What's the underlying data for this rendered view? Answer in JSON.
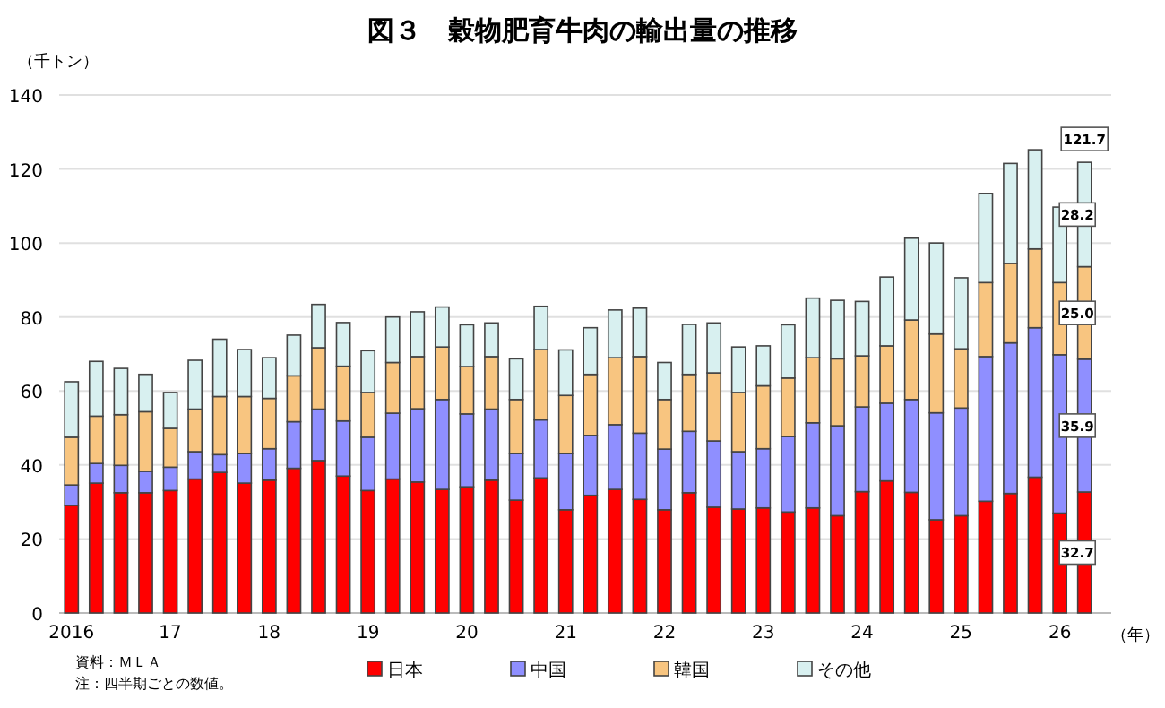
{
  "chart_data": {
    "type": "bar",
    "stacked": true,
    "title": "図３　穀物肥育牛肉の輸出量の推移",
    "ylabel": "（千トン）",
    "xlabel": "（年）",
    "categories": [
      "2016",
      null,
      null,
      null,
      "17",
      null,
      null,
      null,
      "18",
      null,
      null,
      null,
      "19",
      null,
      null,
      null,
      "20",
      null,
      null,
      null,
      "21",
      null,
      null,
      null,
      "22",
      null,
      null,
      null,
      "23",
      null,
      null,
      null,
      "24",
      null,
      null,
      null,
      "25",
      null,
      null,
      null,
      "26",
      null
    ],
    "series": [
      {
        "name": "日本",
        "color": "#ff0000",
        "values": [
          29.1,
          35.1,
          32.5,
          32.5,
          33.1,
          36.2,
          38.0,
          35.1,
          35.9,
          39.1,
          41.2,
          37.0,
          33.1,
          36.2,
          35.4,
          33.4,
          34.1,
          35.9,
          30.5,
          36.5,
          27.9,
          31.8,
          33.4,
          30.7,
          27.9,
          32.5,
          28.6,
          28.1,
          28.4,
          27.3,
          28.4,
          26.3,
          32.8,
          35.7,
          32.6,
          25.2,
          26.3,
          30.2,
          32.3,
          36.7,
          27.0,
          32.7
        ],
        "value_labels": [
          null,
          null,
          null,
          null,
          null,
          null,
          null,
          null,
          null,
          null,
          null,
          null,
          null,
          null,
          null,
          null,
          null,
          null,
          null,
          null,
          null,
          null,
          null,
          null,
          null,
          null,
          null,
          null,
          null,
          null,
          null,
          null,
          null,
          null,
          null,
          null,
          null,
          null,
          null,
          null,
          null,
          "32.7"
        ]
      },
      {
        "name": "中国",
        "color": "#8f8fff",
        "values": [
          5.5,
          5.3,
          7.4,
          5.8,
          6.3,
          7.4,
          4.8,
          8.0,
          8.5,
          12.6,
          13.9,
          14.9,
          14.4,
          17.8,
          19.8,
          24.3,
          19.7,
          19.2,
          12.6,
          15.7,
          15.2,
          16.2,
          17.5,
          17.9,
          16.4,
          16.6,
          17.9,
          15.5,
          16.0,
          20.4,
          23.0,
          24.3,
          22.9,
          21.0,
          25.1,
          28.9,
          29.1,
          39.1,
          40.7,
          40.4,
          42.8,
          35.9
        ],
        "value_labels": [
          null,
          null,
          null,
          null,
          null,
          null,
          null,
          null,
          null,
          null,
          null,
          null,
          null,
          null,
          null,
          null,
          null,
          null,
          null,
          null,
          null,
          null,
          null,
          null,
          null,
          null,
          null,
          null,
          null,
          null,
          null,
          null,
          null,
          null,
          null,
          null,
          null,
          null,
          null,
          null,
          null,
          "35.9"
        ]
      },
      {
        "name": "韓国",
        "color": "#f8c580",
        "values": [
          12.9,
          12.8,
          13.7,
          16.1,
          10.5,
          11.5,
          15.7,
          15.4,
          13.6,
          12.4,
          16.6,
          14.8,
          12.1,
          13.7,
          14.1,
          14.2,
          12.8,
          14.2,
          14.6,
          19.0,
          15.7,
          16.5,
          18.1,
          20.7,
          13.4,
          15.4,
          18.4,
          16.0,
          17.0,
          15.8,
          17.6,
          18.1,
          13.8,
          15.5,
          21.5,
          21.3,
          16.0,
          20.0,
          21.5,
          21.3,
          19.5,
          25.0
        ],
        "value_labels": [
          null,
          null,
          null,
          null,
          null,
          null,
          null,
          null,
          null,
          null,
          null,
          null,
          null,
          null,
          null,
          null,
          null,
          null,
          null,
          null,
          null,
          null,
          null,
          null,
          null,
          null,
          null,
          null,
          null,
          null,
          null,
          null,
          null,
          null,
          null,
          null,
          null,
          null,
          null,
          null,
          null,
          "25.0"
        ]
      },
      {
        "name": "その他",
        "color": "#d8f0f0",
        "values": [
          15.0,
          14.8,
          12.5,
          10.1,
          9.7,
          13.2,
          15.5,
          12.7,
          11.0,
          11.0,
          11.7,
          11.8,
          11.3,
          12.3,
          12.1,
          10.8,
          11.3,
          9.1,
          11.0,
          11.7,
          12.3,
          12.6,
          12.9,
          13.1,
          10.0,
          13.5,
          13.5,
          12.3,
          10.8,
          14.4,
          16.1,
          15.8,
          14.7,
          18.6,
          22.1,
          24.6,
          19.2,
          24.1,
          27.0,
          26.8,
          20.4,
          28.2
        ],
        "value_labels": [
          null,
          null,
          null,
          null,
          null,
          null,
          null,
          null,
          null,
          null,
          null,
          null,
          null,
          null,
          null,
          null,
          null,
          null,
          null,
          null,
          null,
          null,
          null,
          null,
          null,
          null,
          null,
          null,
          null,
          null,
          null,
          null,
          null,
          null,
          null,
          null,
          null,
          null,
          null,
          null,
          null,
          "28.2"
        ]
      }
    ],
    "totals": [
      null,
      null,
      null,
      null,
      null,
      null,
      null,
      null,
      null,
      null,
      null,
      null,
      null,
      null,
      null,
      null,
      null,
      null,
      null,
      null,
      null,
      null,
      null,
      null,
      null,
      null,
      null,
      null,
      null,
      null,
      null,
      null,
      null,
      null,
      null,
      null,
      null,
      null,
      null,
      null,
      null,
      "121.7"
    ],
    "ylim": [
      0,
      140
    ],
    "yticks": [
      0,
      20,
      40,
      60,
      80,
      100,
      120,
      140
    ],
    "grid": "y",
    "legend": "bottom",
    "annotations": [
      "資料：ＭＬＡ",
      "注：四半期ごとの数値。"
    ]
  }
}
